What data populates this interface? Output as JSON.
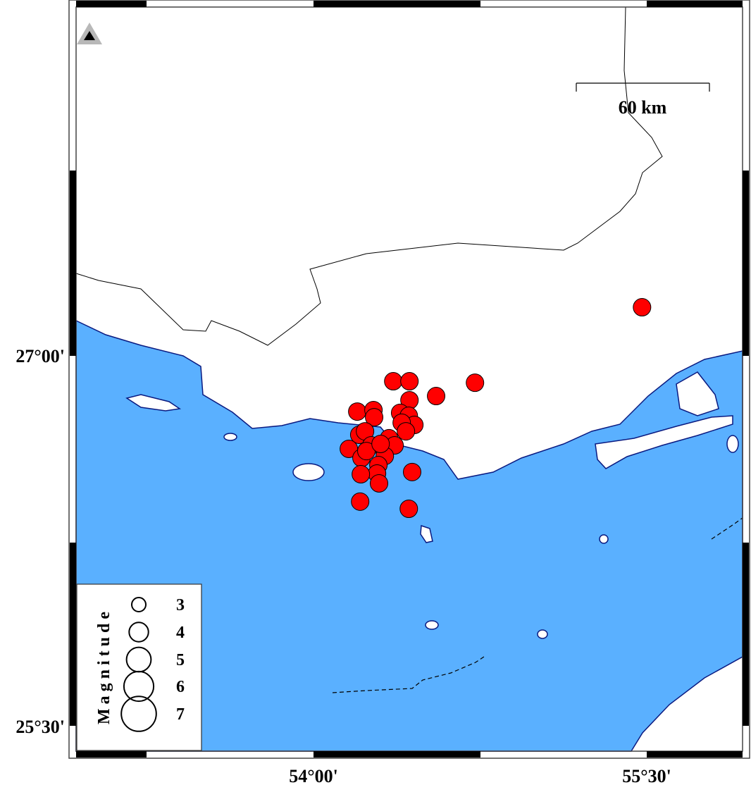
{
  "map": {
    "colors": {
      "sea": "#5ab0ff",
      "land": "#ffffff",
      "coast": "#0a1a80",
      "event": "#ff0000"
    },
    "extent": {
      "lon_ticks": [
        "54°00'",
        "55°30'"
      ],
      "lat_ticks": [
        "27°00'",
        "25°30'"
      ]
    },
    "station_icon": "triangle-station-icon",
    "scale_bar": {
      "label": "60 km"
    },
    "legend": {
      "title": "Magnitude",
      "items": [
        {
          "mag": 3,
          "label": "3"
        },
        {
          "mag": 4,
          "label": "4"
        },
        {
          "mag": 5,
          "label": "5"
        },
        {
          "mag": 6,
          "label": "6"
        },
        {
          "mag": 7,
          "label": "7"
        }
      ]
    },
    "events": [
      {
        "lon": 54.359,
        "lat": 26.897
      },
      {
        "lon": 54.432,
        "lat": 26.897
      },
      {
        "lon": 54.727,
        "lat": 26.891
      },
      {
        "lon": 54.552,
        "lat": 26.837
      },
      {
        "lon": 54.432,
        "lat": 26.82
      },
      {
        "lon": 54.197,
        "lat": 26.774
      },
      {
        "lon": 54.27,
        "lat": 26.78
      },
      {
        "lon": 54.273,
        "lat": 26.751
      },
      {
        "lon": 54.39,
        "lat": 26.769
      },
      {
        "lon": 54.429,
        "lat": 26.757
      },
      {
        "lon": 54.454,
        "lat": 26.72
      },
      {
        "lon": 54.397,
        "lat": 26.729
      },
      {
        "lon": 54.416,
        "lat": 26.694
      },
      {
        "lon": 54.206,
        "lat": 26.68
      },
      {
        "lon": 54.232,
        "lat": 26.694
      },
      {
        "lon": 54.34,
        "lat": 26.666
      },
      {
        "lon": 54.365,
        "lat": 26.637
      },
      {
        "lon": 54.159,
        "lat": 26.623
      },
      {
        "lon": 54.26,
        "lat": 26.637
      },
      {
        "lon": 54.216,
        "lat": 26.586
      },
      {
        "lon": 54.321,
        "lat": 26.594
      },
      {
        "lon": 54.292,
        "lat": 26.557
      },
      {
        "lon": 54.286,
        "lat": 26.523
      },
      {
        "lon": 54.213,
        "lat": 26.52
      },
      {
        "lon": 54.444,
        "lat": 26.529
      },
      {
        "lon": 54.295,
        "lat": 26.483
      },
      {
        "lon": 54.21,
        "lat": 26.409
      },
      {
        "lon": 54.429,
        "lat": 26.38
      },
      {
        "lon": 55.479,
        "lat": 27.197
      },
      {
        "lon": 54.238,
        "lat": 26.614
      },
      {
        "lon": 54.302,
        "lat": 26.643
      }
    ]
  }
}
